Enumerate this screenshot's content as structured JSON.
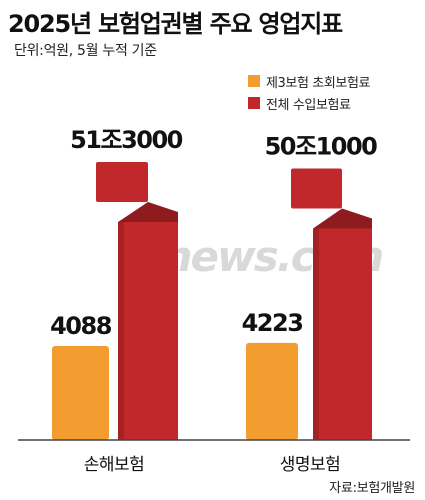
{
  "title": "2025년 보험업권별 주요 영업지표",
  "subtitle": "단위:억원, 5월 누적 기준",
  "source": "자료:보험개발원",
  "watermark": "etnews.com",
  "colors": {
    "series1": "#f39c2f",
    "series2": "#c0282b",
    "series2_dark": "#8e1b1e"
  },
  "legend": [
    {
      "label": "제3보험 초회보험료",
      "color": "#f39c2f"
    },
    {
      "label": "전체 수입보험료",
      "color": "#c0282b"
    }
  ],
  "chart_data": {
    "type": "bar",
    "title": "2025년 보험업권별 주요 영업지표",
    "subtitle": "단위:억원, 5월 누적 기준",
    "categories": [
      "손해보험",
      "생명보험"
    ],
    "series": [
      {
        "name": "제3보험 초회보험료",
        "values": [
          4088,
          4223
        ],
        "labels": [
          "4088",
          "4223"
        ]
      },
      {
        "name": "전체 수입보험료",
        "values": [
          513000,
          501000
        ],
        "labels": [
          "51조3000",
          "50조1000"
        ]
      }
    ],
    "axis_break": true,
    "legend": "top-right",
    "grid": false
  }
}
